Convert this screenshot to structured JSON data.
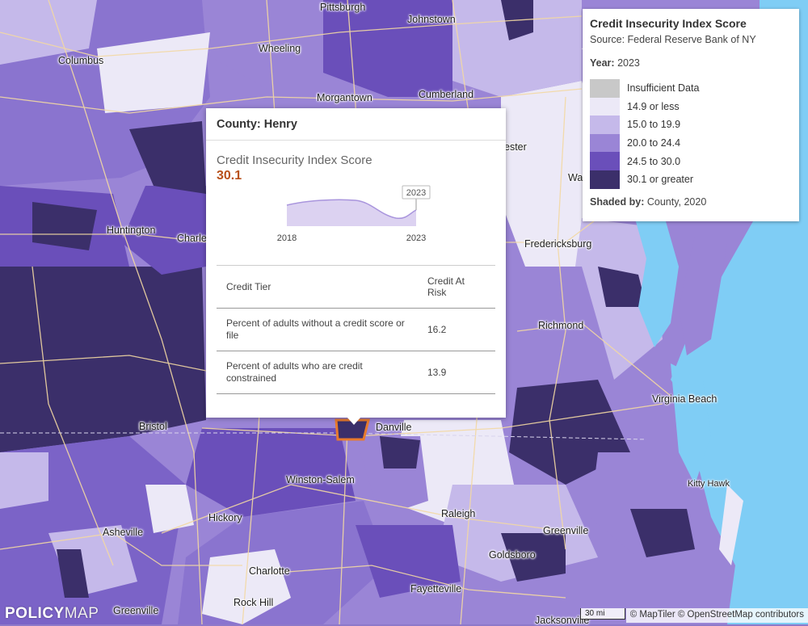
{
  "map": {
    "cities": [
      {
        "name": "Pittsburgh"
      },
      {
        "name": "Johnstown"
      },
      {
        "name": "Columbus"
      },
      {
        "name": "Wheeling"
      },
      {
        "name": "Morgantown"
      },
      {
        "name": "Cumberland"
      },
      {
        "name": "Huntington"
      },
      {
        "name": "Charle"
      },
      {
        "name": "ester"
      },
      {
        "name": "Wa"
      },
      {
        "name": "Fredericksburg"
      },
      {
        "name": "Richmond"
      },
      {
        "name": "Virginia Beach"
      },
      {
        "name": "Bristol"
      },
      {
        "name": "Danville"
      },
      {
        "name": "Winston-Salem"
      },
      {
        "name": "Kitty Hawk"
      },
      {
        "name": "Hickory"
      },
      {
        "name": "Raleigh"
      },
      {
        "name": "Asheville"
      },
      {
        "name": "Greenville"
      },
      {
        "name": "Goldsboro"
      },
      {
        "name": "Charlotte"
      },
      {
        "name": "Rock Hill"
      },
      {
        "name": "Fayetteville"
      },
      {
        "name": "Greenville"
      },
      {
        "name": "Jacksonville"
      }
    ],
    "colors": {
      "water": "#7fcdf5",
      "c1": "#ece9f7",
      "c2": "#c5b9ea",
      "c3": "#9a85d6",
      "c4": "#6a4fba",
      "c5": "#3b2f6a",
      "road": "#f3d9a3",
      "highlight": "#e87a2d"
    }
  },
  "legend": {
    "title": "Credit Insecurity Index Score",
    "source": "Source: Federal Reserve Bank of NY",
    "year_label": "Year:",
    "year_value": "2023",
    "items": [
      {
        "label": "Insufficient Data",
        "color": "#c8c8c8"
      },
      {
        "label": "14.9 or less",
        "color": "#ece9f7"
      },
      {
        "label": "15.0 to 19.9",
        "color": "#c5b9ea"
      },
      {
        "label": "20.0 to 24.4",
        "color": "#9a85d6"
      },
      {
        "label": "24.5 to 30.0",
        "color": "#6a4fba"
      },
      {
        "label": "30.1 or greater",
        "color": "#3b2f6a"
      }
    ],
    "shaded_label": "Shaded by:",
    "shaded_value": "County, 2020"
  },
  "popup": {
    "title": "County: Henry",
    "metric": "Credit Insecurity Index Score",
    "value": "30.1",
    "sparkline": {
      "start_label": "2018",
      "end_label": "2023",
      "tooltip": "2023"
    },
    "table": {
      "headers": [
        "Credit Tier",
        "Credit At Risk"
      ],
      "rows": [
        {
          "label": "Percent of adults without a credit score or file",
          "value": "16.2"
        },
        {
          "label": "Percent of adults who are credit constrained",
          "value": "13.9"
        }
      ]
    }
  },
  "footer": {
    "logo_a": "POLICY",
    "logo_b": "MAP",
    "scale": "30 mi",
    "attribution": "© MapTiler © OpenStreetMap contributors"
  }
}
